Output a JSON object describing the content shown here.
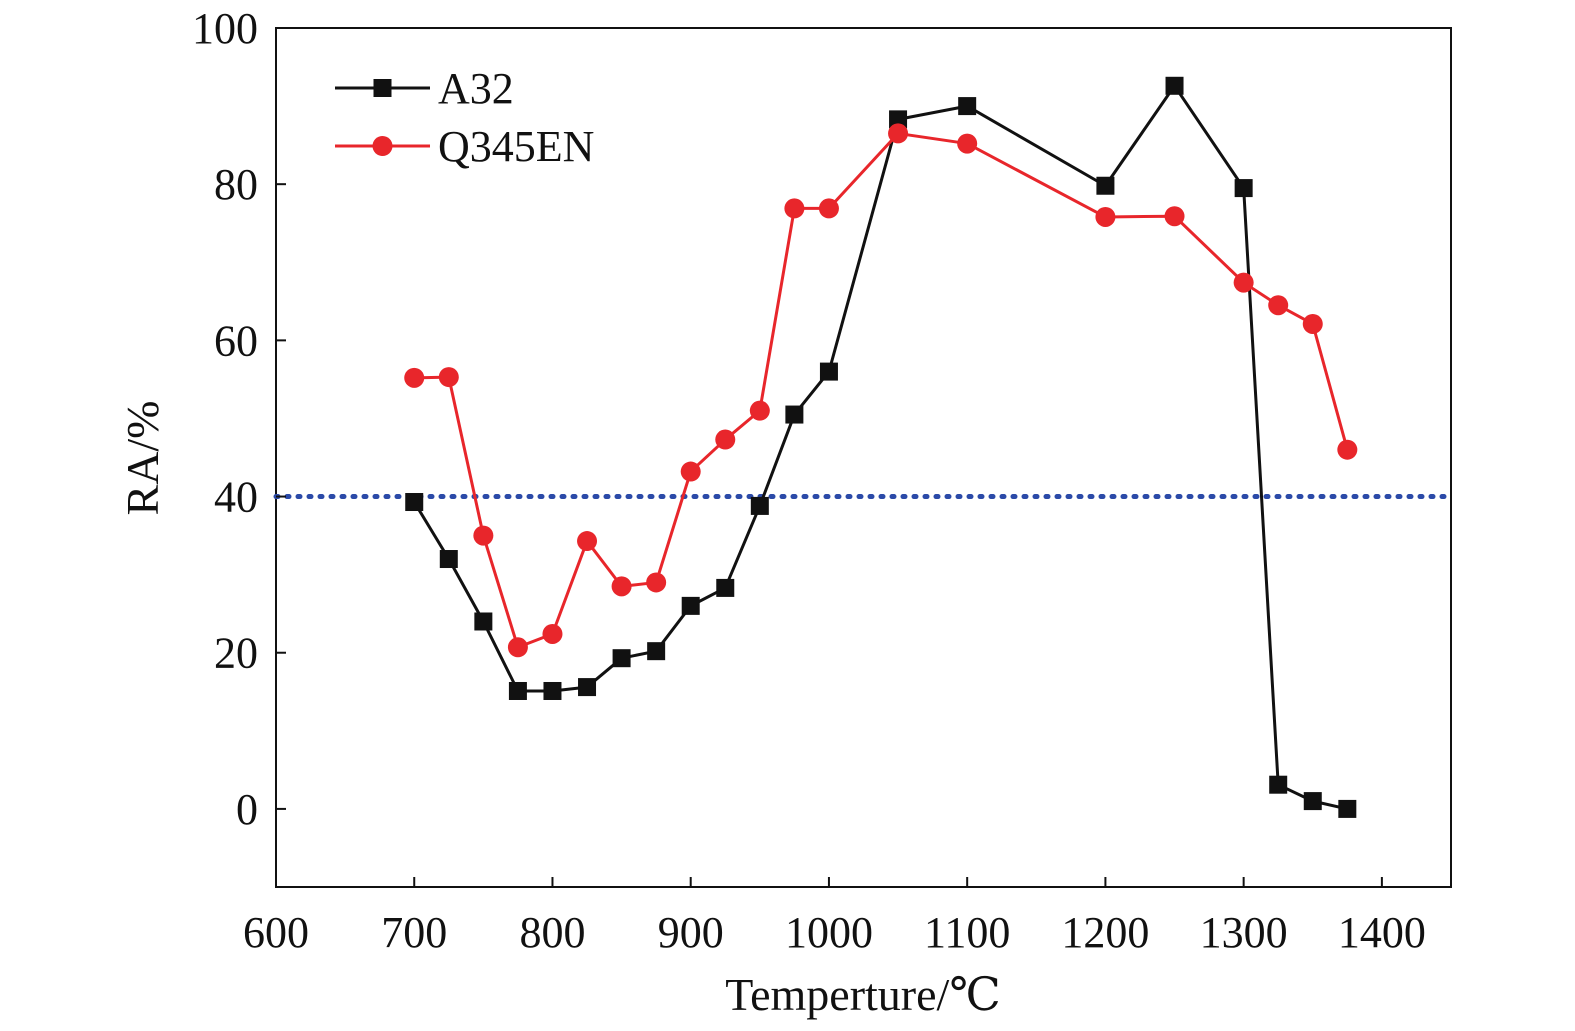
{
  "chart_data": {
    "type": "line",
    "xlabel": "Temperture/℃",
    "ylabel": "RA/%",
    "xlim": [
      600,
      1450
    ],
    "ylim": [
      -10,
      100
    ],
    "xticks": [
      600,
      700,
      800,
      900,
      1000,
      1100,
      1200,
      1300,
      1400
    ],
    "yticks": [
      0,
      20,
      40,
      60,
      80,
      100
    ],
    "grid": false,
    "legend_position": "top-left",
    "reference_line": {
      "y": 40,
      "style": "dotted",
      "color": "#2b4aa8"
    },
    "series": [
      {
        "name": "A32",
        "color": "#111111",
        "marker": "square",
        "x": [
          700,
          725,
          750,
          775,
          800,
          825,
          850,
          875,
          900,
          925,
          950,
          975,
          1000,
          1050,
          1100,
          1200,
          1250,
          1300,
          1325,
          1350,
          1375
        ],
        "y": [
          39.3,
          32.0,
          24.0,
          15.1,
          15.1,
          15.6,
          19.3,
          20.2,
          26.0,
          28.3,
          38.8,
          50.5,
          56.0,
          88.3,
          90.0,
          79.8,
          92.6,
          79.5,
          3.1,
          1.0,
          0.0
        ]
      },
      {
        "name": "Q345EN",
        "color": "#e8262b",
        "marker": "circle",
        "x": [
          700,
          725,
          750,
          775,
          800,
          825,
          850,
          875,
          900,
          925,
          950,
          975,
          1000,
          1050,
          1100,
          1200,
          1250,
          1300,
          1325,
          1350,
          1375
        ],
        "y": [
          55.2,
          55.3,
          35.0,
          20.7,
          22.4,
          34.3,
          28.5,
          29.0,
          43.2,
          47.3,
          51.0,
          76.9,
          76.9,
          86.5,
          85.2,
          75.8,
          75.9,
          67.4,
          64.5,
          62.1,
          46.0
        ]
      }
    ]
  }
}
